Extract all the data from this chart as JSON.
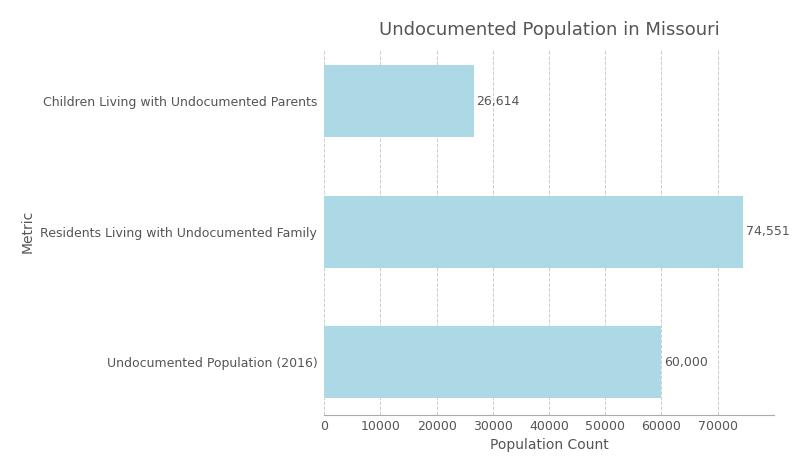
{
  "title": "Undocumented Population in Missouri",
  "xlabel": "Population Count",
  "ylabel": "Metric",
  "categories": [
    "Undocumented Population (2016)",
    "Residents Living with Undocumented Family",
    "Children Living with Undocumented Parents"
  ],
  "values": [
    60000,
    74551,
    26614
  ],
  "labels": [
    "60,000",
    "74,551",
    "26,614"
  ],
  "bar_color": "#add8e6",
  "background_color": "#ffffff",
  "title_fontsize": 13,
  "axis_label_fontsize": 10,
  "tick_fontsize": 9,
  "label_fontsize": 9,
  "bar_height": 0.55,
  "xlim": [
    0,
    80000
  ],
  "xticks": [
    0,
    10000,
    20000,
    30000,
    40000,
    50000,
    60000,
    70000
  ],
  "grid_color": "#cccccc",
  "text_color": "#555555",
  "spine_color": "#aaaaaa"
}
